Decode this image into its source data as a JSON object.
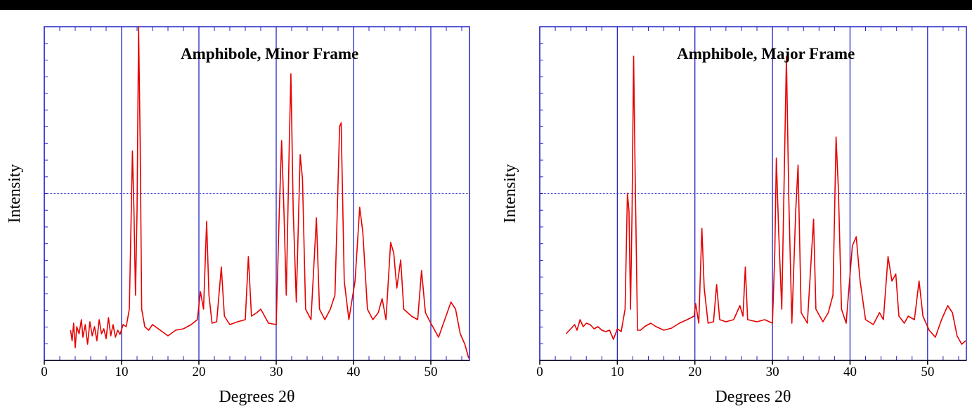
{
  "chart_data": [
    {
      "type": "line",
      "title": "Amphibole, Minor Frame",
      "x_label": "Degrees 2θ",
      "y_label": "Intensity",
      "color": "#e60000",
      "grid": true,
      "xlim": [
        0,
        55
      ],
      "xticks": [
        0,
        10,
        20,
        30,
        40,
        50
      ],
      "ylim": [
        0,
        475
      ],
      "x": [
        3.4,
        3.6,
        3.8,
        4.0,
        4.2,
        4.5,
        4.8,
        5.0,
        5.3,
        5.6,
        5.9,
        6.2,
        6.5,
        6.8,
        7.1,
        7.4,
        7.7,
        8.0,
        8.3,
        8.6,
        8.9,
        9.2,
        9.5,
        9.8,
        10.2,
        10.6,
        11.0,
        11.2,
        11.4,
        11.6,
        11.8,
        12.0,
        12.2,
        12.4,
        12.6,
        13.0,
        13.5,
        14.0,
        15,
        16,
        17,
        18,
        19,
        19.8,
        20.2,
        20.6,
        21.0,
        21.3,
        21.7,
        22.3,
        22.9,
        23.3,
        24,
        25,
        26,
        26.4,
        26.8,
        27.5,
        28,
        29,
        30,
        30.4,
        30.7,
        31.0,
        31.3,
        31.7,
        31.9,
        32.2,
        32.6,
        33.1,
        33.4,
        33.8,
        34.5,
        35.2,
        35.6,
        36.3,
        37,
        37.6,
        38.2,
        38.4,
        38.8,
        39.4,
        40.2,
        40.8,
        41.2,
        41.8,
        42.5,
        43.2,
        43.7,
        44.2,
        44.8,
        45.2,
        45.6,
        46.1,
        46.5,
        47.5,
        48.3,
        48.8,
        49.3,
        50,
        51,
        51.8,
        52.6,
        53.2,
        53.8,
        54.4,
        54.9
      ],
      "values": [
        43,
        28,
        53,
        18,
        48,
        38,
        58,
        33,
        51,
        23,
        55,
        35,
        48,
        28,
        58,
        38,
        45,
        31,
        61,
        35,
        51,
        33,
        43,
        37,
        51,
        48,
        73,
        183,
        298,
        213,
        93,
        213,
        475,
        313,
        73,
        48,
        43,
        51,
        43,
        35,
        43,
        45,
        51,
        58,
        98,
        73,
        198,
        93,
        53,
        55,
        133,
        63,
        51,
        55,
        58,
        148,
        63,
        68,
        73,
        53,
        51,
        213,
        313,
        213,
        93,
        313,
        408,
        213,
        83,
        293,
        258,
        73,
        58,
        203,
        73,
        58,
        73,
        93,
        333,
        338,
        113,
        58,
        113,
        218,
        183,
        73,
        58,
        68,
        88,
        58,
        168,
        153,
        103,
        143,
        73,
        63,
        58,
        128,
        68,
        53,
        33,
        58,
        83,
        73,
        38,
        23,
        3
      ]
    },
    {
      "type": "line",
      "title": "Amphibole, Major Frame",
      "x_label": "Degrees 2θ",
      "y_label": "Intensity",
      "color": "#e60000",
      "grid": true,
      "xlim": [
        0,
        55
      ],
      "xticks": [
        0,
        10,
        20,
        30,
        40,
        50
      ],
      "ylim": [
        0,
        475
      ],
      "x": [
        3.4,
        4,
        4.5,
        4.8,
        5.2,
        5.6,
        6,
        6.5,
        7,
        7.5,
        8,
        8.5,
        9,
        9.5,
        10,
        10.5,
        11.0,
        11.3,
        11.5,
        11.7,
        11.9,
        12.1,
        12.3,
        12.6,
        13.0,
        13.5,
        14.3,
        15,
        16,
        17,
        18,
        19,
        19.9,
        20.1,
        20.5,
        20.9,
        21.2,
        21.7,
        22.4,
        22.8,
        23.2,
        24,
        25,
        25.8,
        26.2,
        26.5,
        26.8,
        28,
        29,
        30,
        30.3,
        30.5,
        30.8,
        31.2,
        31.6,
        31.8,
        32.1,
        32.5,
        33.0,
        33.3,
        33.7,
        34.5,
        35.3,
        35.6,
        36.5,
        37.2,
        37.8,
        38.2,
        38.5,
        38.9,
        39.5,
        40.3,
        40.8,
        41.3,
        42,
        43,
        43.8,
        44.3,
        44.9,
        45.4,
        45.9,
        46.3,
        47,
        47.5,
        48.3,
        48.9,
        49.4,
        50.2,
        51,
        51.8,
        52.6,
        53.2,
        53.8,
        54.4,
        54.9
      ],
      "values": [
        38,
        45,
        51,
        43,
        58,
        48,
        53,
        51,
        45,
        48,
        43,
        41,
        43,
        30,
        45,
        41,
        73,
        238,
        213,
        73,
        213,
        433,
        263,
        43,
        43,
        48,
        53,
        48,
        43,
        46,
        53,
        58,
        63,
        81,
        53,
        188,
        103,
        53,
        55,
        108,
        58,
        55,
        58,
        78,
        63,
        133,
        58,
        55,
        58,
        53,
        153,
        288,
        183,
        73,
        313,
        433,
        233,
        53,
        213,
        278,
        68,
        53,
        201,
        73,
        55,
        68,
        93,
        318,
        243,
        73,
        53,
        163,
        176,
        113,
        58,
        51,
        68,
        58,
        148,
        113,
        123,
        63,
        53,
        63,
        58,
        113,
        63,
        43,
        33,
        58,
        78,
        68,
        35,
        23,
        28
      ]
    }
  ]
}
